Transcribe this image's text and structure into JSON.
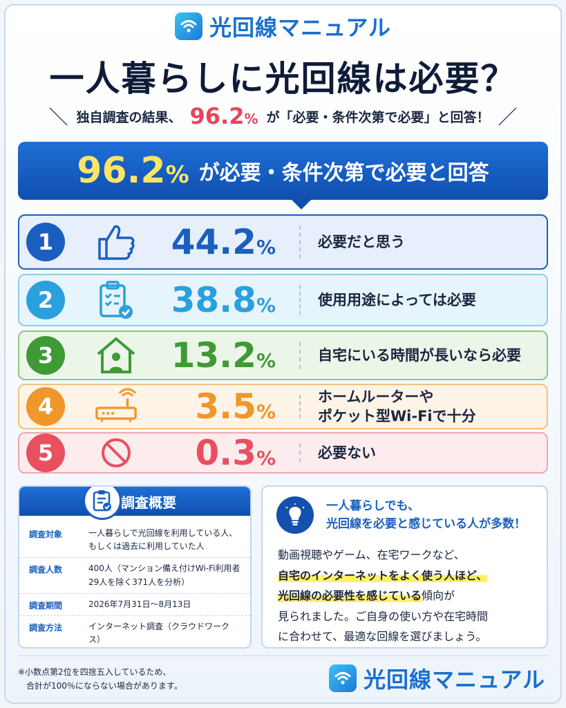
{
  "brand": {
    "name": "光回線マニュアル"
  },
  "title": "一人暮らしに光回線は必要？",
  "subtitle": {
    "prefix": "独自調査の結果、",
    "value": "96.2",
    "unit": "%",
    "suffix": "が「必要・条件次第で必要」と回答！"
  },
  "banner": {
    "value": "96.2",
    "unit": "%",
    "text": "が必要・条件次第で必要と回答"
  },
  "results": [
    {
      "rank": "1",
      "icon": "thumbs-up-icon",
      "value": "44.2",
      "unit": "%",
      "label": "必要だと思う",
      "color": "#1a5fc0",
      "bg": "#e6effb",
      "border": "#1a5fc0"
    },
    {
      "rank": "2",
      "icon": "clipboard-check-icon",
      "value": "38.8",
      "unit": "%",
      "label": "使用用途によっては必要",
      "color": "#2aa0dc",
      "bg": "#e6f4fb",
      "border": "#8fcbe8"
    },
    {
      "rank": "3",
      "icon": "house-person-icon",
      "value": "13.2",
      "unit": "%",
      "label": "自宅にいる時間が長いなら必要",
      "color": "#3f9a35",
      "bg": "#ecf6e8",
      "border": "#8cc77f"
    },
    {
      "rank": "4",
      "icon": "router-icon",
      "value": "3.5",
      "unit": "%",
      "label": "ホームルーターや\nポケット型Wi-Fiで十分",
      "color": "#f0962a",
      "bg": "#fdf3e6",
      "border": "#f2c07e"
    },
    {
      "rank": "5",
      "icon": "prohibited-icon",
      "value": "0.3",
      "unit": "%",
      "label": "必要ない",
      "color": "#e8505f",
      "bg": "#fcecee",
      "border": "#f0a6ae"
    }
  ],
  "survey": {
    "title": "調査概要",
    "rows": [
      {
        "key": "調査対象",
        "value": "一人暮らしで光回線を利用している人、\nもしくは過去に利用していた人"
      },
      {
        "key": "調査人数",
        "value": "400人（マンション備え付けWi-Fi利用者\n29人を除く371人を分析）"
      },
      {
        "key": "調査期間",
        "value": "2026年7月31日〜8月13日"
      },
      {
        "key": "調査方法",
        "value": "インターネット調査（クラウドワークス）"
      }
    ]
  },
  "insight": {
    "heading": "一人暮らしでも、\n光回線を必要と感じている人が多数！",
    "line1": "動画視聴やゲーム、在宅ワークなど、",
    "mark1": "自宅のインターネットをよく使う人ほど、",
    "mark2": "光回線の必要性を感じている",
    "line3": "傾向が",
    "line4": "見られました。ご自身の使い方や在宅時間",
    "line5": "に合わせて、最適な回線を選びましょう。"
  },
  "footnote": "※小数点第2位を四捨五入しているため、\n　合計が100％にならない場合があります。",
  "colors": {
    "accent": "#1a5fc0",
    "highlight": "#ffe566",
    "subtitle_highlight": "#e8455a"
  }
}
